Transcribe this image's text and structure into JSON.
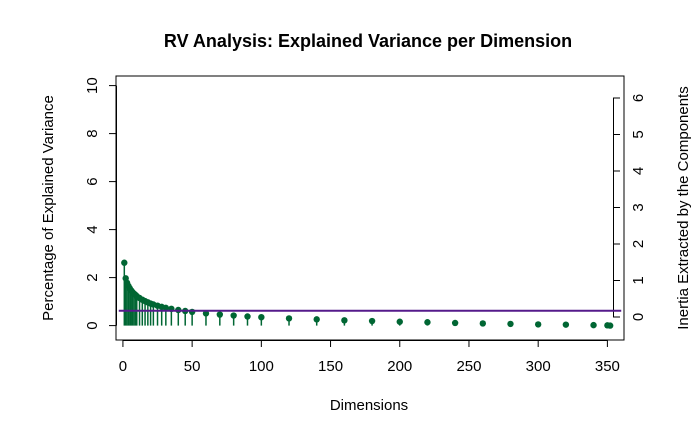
{
  "chart_data": {
    "type": "scatter",
    "title": "RV Analysis: Explained Variance per Dimension",
    "xlabel": "Dimensions",
    "ylabel": "Percentage of Explained Variance",
    "y2label": "Inertia Extracted by the Components",
    "xlim": [
      -5,
      362
    ],
    "ylim": [
      -0.6,
      10.4
    ],
    "y2lim": [
      0,
      6
    ],
    "x_ticks": [
      "0",
      "50",
      "100",
      "150",
      "200",
      "250",
      "300",
      "350"
    ],
    "y_ticks": [
      "0",
      "2",
      "4",
      "6",
      "8",
      "10"
    ],
    "y2_ticks": [
      "0",
      "1",
      "2",
      "3",
      "4",
      "5",
      "6"
    ],
    "grid": false,
    "colors": {
      "points": "#006633",
      "reference_line": "#551A8B"
    },
    "reference_line": {
      "y": 0.62,
      "x_from": -3,
      "x_to": 360
    },
    "series": [
      {
        "x": [
          1,
          2,
          3,
          4,
          5,
          6,
          7,
          8,
          9,
          10,
          12,
          14,
          16,
          18,
          20,
          22,
          25,
          28,
          31,
          35,
          40,
          45,
          50,
          60,
          70,
          80,
          90,
          100,
          120,
          140,
          160,
          180,
          200,
          220,
          240,
          260,
          280,
          300,
          320,
          340,
          350,
          352
        ],
        "values": [
          2.62,
          1.97,
          1.78,
          1.65,
          1.55,
          1.46,
          1.39,
          1.33,
          1.28,
          1.23,
          1.15,
          1.08,
          1.02,
          0.97,
          0.92,
          0.88,
          0.83,
          0.78,
          0.74,
          0.7,
          0.65,
          0.61,
          0.57,
          0.51,
          0.46,
          0.42,
          0.38,
          0.35,
          0.3,
          0.26,
          0.22,
          0.19,
          0.16,
          0.14,
          0.11,
          0.09,
          0.07,
          0.05,
          0.04,
          0.02,
          0.01,
          0.0
        ]
      }
    ]
  }
}
